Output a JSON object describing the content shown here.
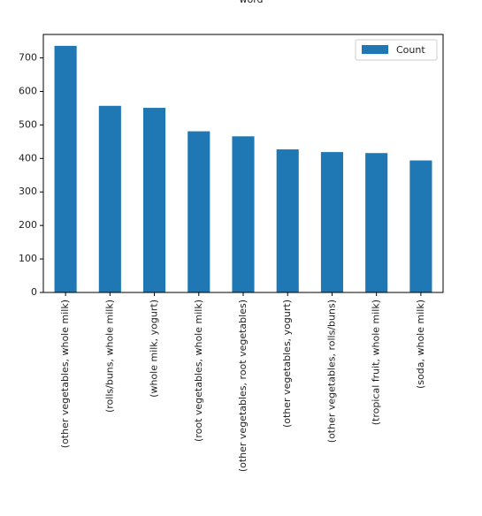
{
  "chart_data": {
    "type": "bar",
    "title": "word",
    "categories": [
      "(other vegetables, whole milk)",
      "(rolls/buns, whole milk)",
      "(whole milk, yogurt)",
      "(root vegetables, whole milk)",
      "(other vegetables, root vegetables)",
      "(other vegetables, yogurt)",
      "(other vegetables, rolls/buns)",
      "(tropical fruit, whole milk)",
      "(soda, whole milk)"
    ],
    "series": [
      {
        "name": "Count",
        "values": [
          736,
          557,
          551,
          481,
          466,
          427,
          419,
          416,
          394
        ]
      }
    ],
    "ylim": [
      0,
      770
    ],
    "yticks": [
      0,
      100,
      200,
      300,
      400,
      500,
      600,
      700
    ],
    "legend_position": "top-right",
    "grid": false,
    "bar_color": "#1f77b4"
  }
}
